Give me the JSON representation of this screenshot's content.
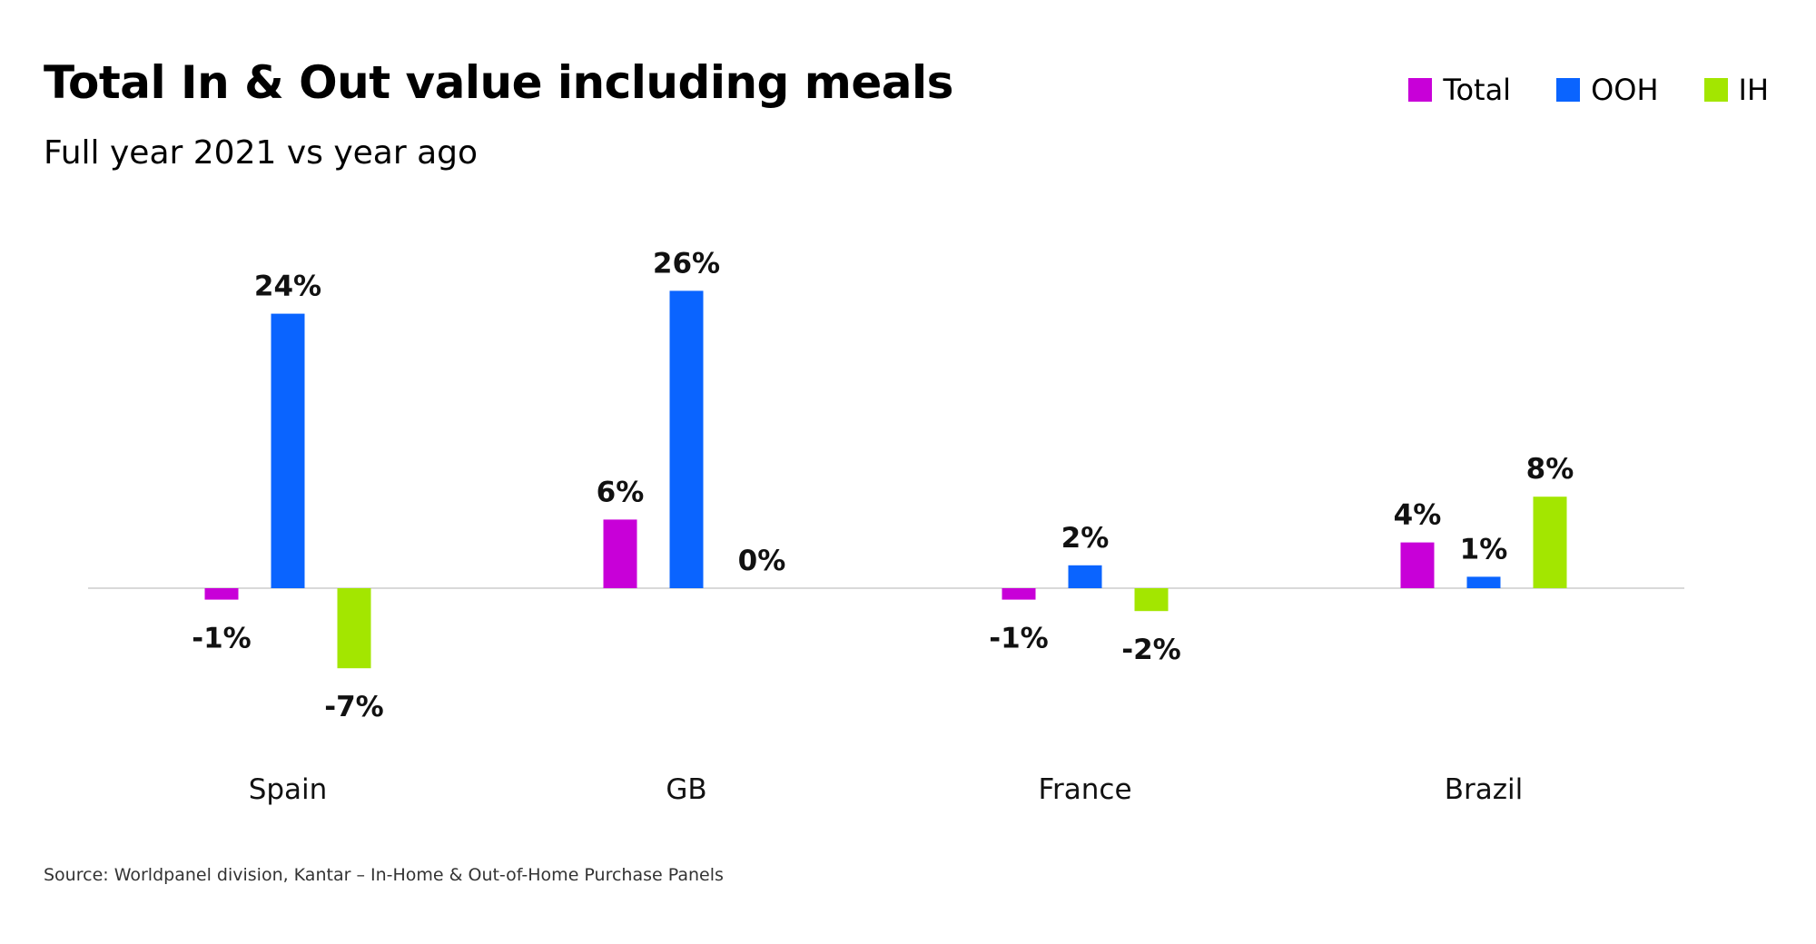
{
  "chart_data": {
    "type": "bar",
    "title": "Total In & Out value including meals",
    "subtitle": "Full year 2021 vs year ago",
    "categories": [
      "Spain",
      "GB",
      "France",
      "Brazil"
    ],
    "series": [
      {
        "name": "Total",
        "color": "#c800d8",
        "values": [
          -1,
          6,
          -1,
          4
        ],
        "labels": [
          "-1%",
          "6%",
          "-1%",
          "4%"
        ]
      },
      {
        "name": "OOH",
        "color": "#0a64ff",
        "values": [
          24,
          26,
          2,
          1
        ],
        "labels": [
          "24%",
          "26%",
          "2%",
          "1%"
        ]
      },
      {
        "name": "IH",
        "color": "#a3e600",
        "values": [
          -7,
          0,
          -2,
          8
        ],
        "labels": [
          "-7%",
          "0%",
          "-2%",
          "8%"
        ]
      }
    ],
    "unit": "%",
    "legend_position": "top-right",
    "grid": false,
    "source": "Source: Worldpanel division, Kantar – In-Home & Out-of-Home Purchase Panels"
  }
}
